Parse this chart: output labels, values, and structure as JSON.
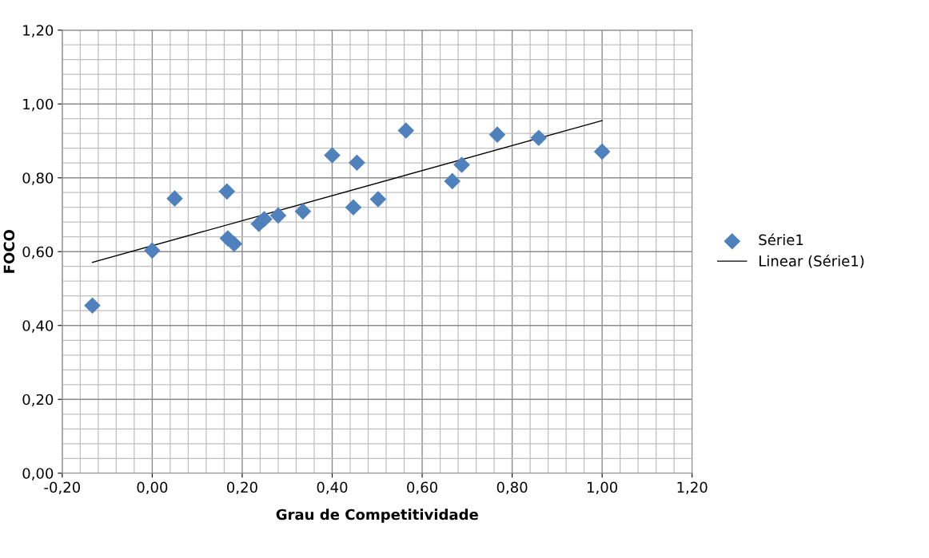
{
  "chart_data": {
    "type": "scatter",
    "xlabel": "Grau de Competitividade",
    "ylabel": "FOCO",
    "xlim": [
      -0.2,
      1.2
    ],
    "ylim": [
      0,
      1.2
    ],
    "xticks": [
      {
        "value": -0.2,
        "label": "-0,20"
      },
      {
        "value": 0,
        "label": "0,00"
      },
      {
        "value": 0.2,
        "label": "0,20"
      },
      {
        "value": 0.4,
        "label": "0,40"
      },
      {
        "value": 0.6,
        "label": "0,60"
      },
      {
        "value": 0.8,
        "label": "0,80"
      },
      {
        "value": 1.0,
        "label": "1,00"
      },
      {
        "value": 1.2,
        "label": "1,20"
      }
    ],
    "yticks": [
      {
        "value": 0,
        "label": "0,00"
      },
      {
        "value": 0.2,
        "label": "0,20"
      },
      {
        "value": 0.4,
        "label": "0,40"
      },
      {
        "value": 0.6,
        "label": "0,60"
      },
      {
        "value": 0.8,
        "label": "0,80"
      },
      {
        "value": 1.0,
        "label": "1,00"
      },
      {
        "value": 1.2,
        "label": "1,20"
      }
    ],
    "grid": true,
    "legend": "right",
    "series": [
      {
        "name": "Série1",
        "marker": "diamond",
        "color": "#4f81bd",
        "x": [
          -0.133,
          0,
          0.05,
          0.166,
          0.168,
          0.182,
          0.237,
          0.249,
          0.28,
          0.335,
          0.4,
          0.447,
          0.455,
          0.502,
          0.564,
          0.667,
          0.688,
          0.767,
          0.859,
          1.0
        ],
        "values": [
          0.454,
          0.603,
          0.744,
          0.763,
          0.636,
          0.621,
          0.675,
          0.688,
          0.698,
          0.709,
          0.861,
          0.72,
          0.841,
          0.742,
          0.928,
          0.791,
          0.835,
          0.917,
          0.908,
          0.871
        ]
      },
      {
        "name": "Linear (Série1)",
        "type": "line",
        "color": "#000000",
        "line_style": "solid",
        "marker": "none",
        "x": [
          -0.133,
          1.0
        ],
        "values": [
          0.571,
          0.955
        ]
      }
    ]
  }
}
